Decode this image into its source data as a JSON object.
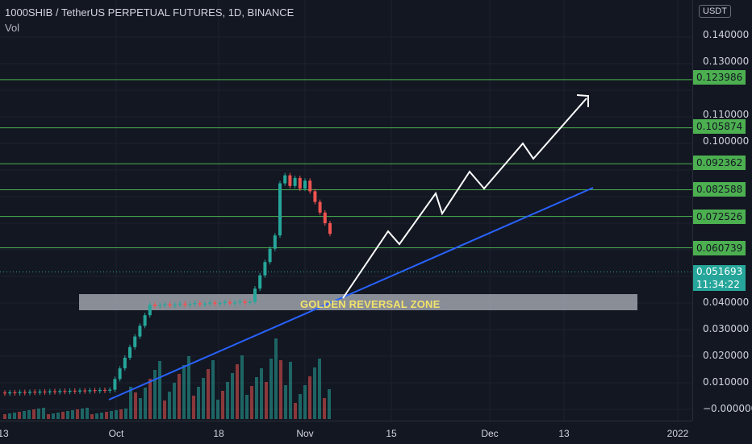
{
  "header": {
    "title": "1000SHIB / TetherUS PERPETUAL FUTURES, 1D, BINANCE",
    "volume_label": "Vol"
  },
  "y_axis": {
    "unit": "USDT",
    "ticks": [
      "0.140000",
      "0.130000",
      "0.110000",
      "0.100000",
      "0.040000",
      "0.030000",
      "0.020000",
      "0.010000",
      "−0.000000"
    ]
  },
  "x_axis": {
    "ticks": [
      "13",
      "Oct",
      "18",
      "Nov",
      "15",
      "Dec",
      "13",
      "2022"
    ]
  },
  "levels": [
    "0.123986",
    "0.105874",
    "0.092362",
    "0.082588",
    "0.072526",
    "0.060739"
  ],
  "current_price": {
    "value": "0.051693",
    "countdown": "11:34:22"
  },
  "annotations": {
    "zone_label": "GOLDEN REVERSAL ZONE"
  },
  "colors": {
    "up": "#26a69a",
    "down": "#ef5350",
    "level": "#4caf50",
    "trendline": "#2962ff",
    "zone": "#b2b5be",
    "projection": "#ffffff"
  }
}
